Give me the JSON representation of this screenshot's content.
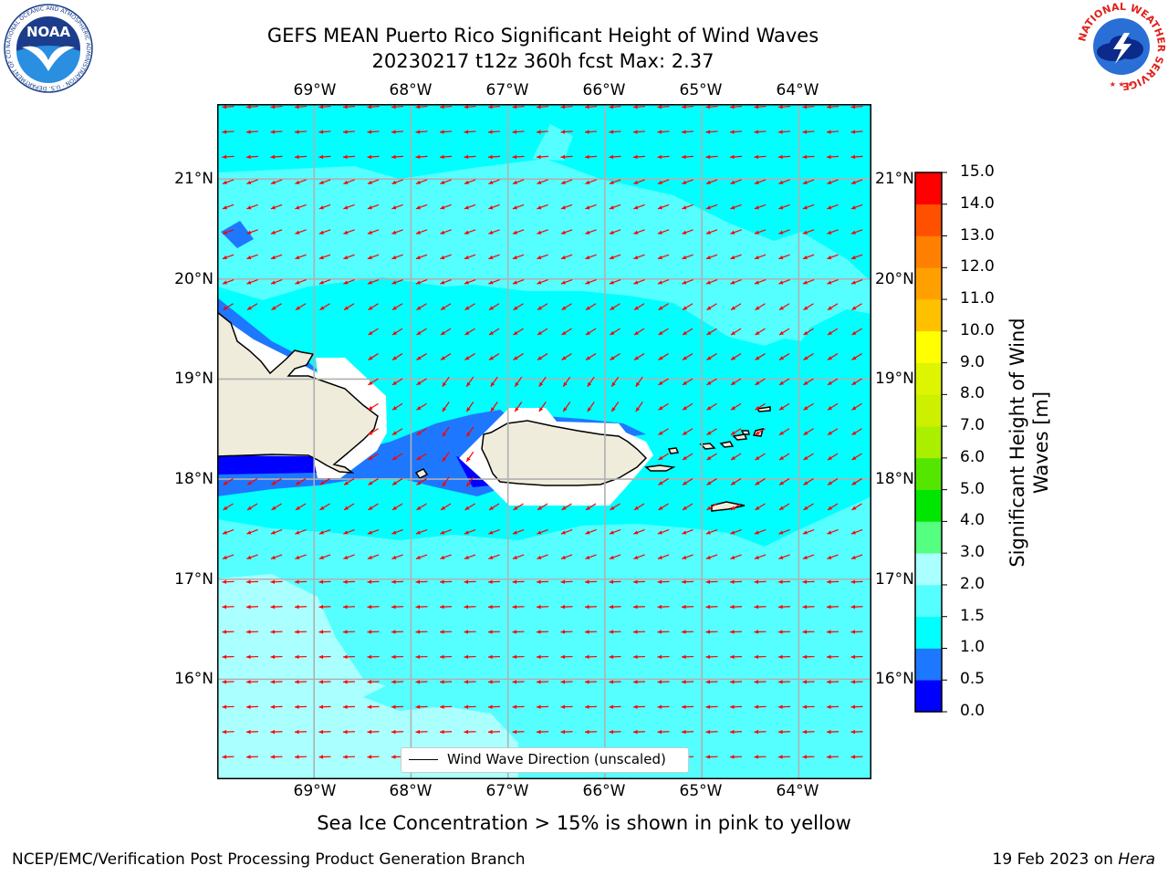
{
  "header": {
    "title_line1": "GEFS MEAN Puerto Rico Significant Height of Wind Waves",
    "title_line2": "20230217 t12z 360h fcst   Max: 2.37"
  },
  "logos": {
    "left_name": "NOAA",
    "left_ring_text": "NATIONAL OCEANIC AND ATMOSPHERIC ADMINISTRATION · U.S. DEPARTMENT OF COMMERCE",
    "right_ring_text": "NATIONAL WEATHER SERVICE"
  },
  "map": {
    "lon_labels_top": [
      "69°W",
      "68°W",
      "67°W",
      "66°W",
      "65°W",
      "64°W"
    ],
    "lon_labels_bottom": [
      "69°W",
      "68°W",
      "67°W",
      "66°W",
      "65°W",
      "64°W"
    ],
    "lat_labels_left": [
      "21°N",
      "20°N",
      "19°N",
      "18°N",
      "17°N",
      "16°N"
    ],
    "lat_labels_right": [
      "21°N",
      "20°N",
      "19°N",
      "18°N",
      "17°N",
      "16°N"
    ],
    "lon_range": [
      -70.0,
      -63.25
    ],
    "lat_range": [
      15.0,
      21.75
    ],
    "grid": true,
    "arrow_color": "#ff0000",
    "land_color": "#efecdc",
    "dominant_direction": "toward west / west-southwest"
  },
  "legend": {
    "label": "Wind Wave Direction (unscaled)",
    "position": "bottom-center"
  },
  "colorbar": {
    "title": "Significant Height of Wind Waves [m]",
    "tick_labels": [
      "15.0",
      "14.0",
      "13.0",
      "12.0",
      "11.0",
      "10.0",
      "9.0",
      "8.0",
      "7.0",
      "6.0",
      "5.0",
      "4.0",
      "3.0",
      "2.0",
      "1.5",
      "1.0",
      "0.5",
      "0.0"
    ],
    "bands": [
      {
        "range": "0.0-0.5",
        "color": "#0000ff"
      },
      {
        "range": "0.5-1.0",
        "color": "#1e78ff"
      },
      {
        "range": "1.0-1.5",
        "color": "#00ffff"
      },
      {
        "range": "1.5-2.0",
        "color": "#55ffff"
      },
      {
        "range": "2.0-3.0",
        "color": "#aaffff"
      },
      {
        "range": "3.0-4.0",
        "color": "#55ff80"
      },
      {
        "range": "4.0-5.0",
        "color": "#00e600"
      },
      {
        "range": "5.0-6.0",
        "color": "#55e600"
      },
      {
        "range": "6.0-7.0",
        "color": "#aaee00"
      },
      {
        "range": "7.0-8.0",
        "color": "#ccf000"
      },
      {
        "range": "8.0-9.0",
        "color": "#ddf500"
      },
      {
        "range": "9.0-10.0",
        "color": "#ffff00"
      },
      {
        "range": "10.0-11.0",
        "color": "#ffc000"
      },
      {
        "range": "11.0-12.0",
        "color": "#ffa000"
      },
      {
        "range": "12.0-13.0",
        "color": "#ff8000"
      },
      {
        "range": "13.0-14.0",
        "color": "#ff5000"
      },
      {
        "range": "14.0-15.0",
        "color": "#ff0000"
      }
    ]
  },
  "caption": "Sea Ice Concentration > 15% is shown in pink to yellow",
  "footer": {
    "left": "NCEP/EMC/Verification Post Processing Product Generation Branch",
    "right_prefix": "19 Feb 2023 on ",
    "right_host": "Hera"
  }
}
